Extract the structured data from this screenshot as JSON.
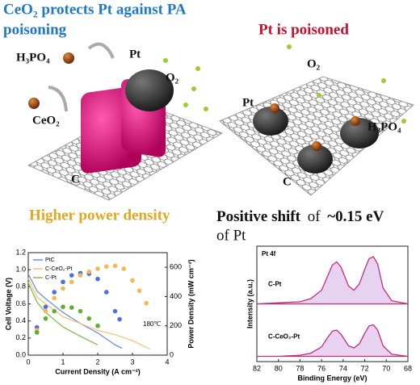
{
  "headings": {
    "left": [
      "CeO₂ protects Pt against PA",
      "poisoning"
    ],
    "right": "Pt is poisoned",
    "power": "Higher power density",
    "shift": [
      "Positive shift",
      "of",
      "~0.15 eV"
    ],
    "shift_line2": "of Pt"
  },
  "labels_left": [
    "H₃PO₄",
    "Pt",
    "O₂",
    "CeO₂",
    "C"
  ],
  "labels_right": [
    "O₂",
    "Pt",
    "H₃PO₄",
    "C"
  ],
  "chart_data": [
    {
      "type": "line",
      "xlabel": "Current Density (A cm⁻²)",
      "ylabel": "Cell Voltage (V)",
      "y2label": "Power Density (mW cm⁻²)",
      "annotation": "180℃",
      "xlim": [
        0,
        4
      ],
      "xticks": [
        0,
        1,
        2,
        3,
        4
      ],
      "ylim": [
        0,
        1.2
      ],
      "yticks": [
        {
          "value": 0,
          "label": "0.0"
        },
        {
          "value": 0.2,
          "label": "0.2"
        },
        {
          "value": 0.4,
          "label": "0.4"
        },
        {
          "value": 0.6,
          "label": "0.6"
        },
        {
          "value": 0.8,
          "label": "0.8"
        },
        {
          "value": 1,
          "label": "1.0"
        },
        {
          "value": 1.2,
          "label": "1.2"
        }
      ],
      "y2lim": [
        0,
        700
      ],
      "y2ticks": [
        0,
        200,
        400,
        600
      ],
      "series": [
        {
          "name": "PtC",
          "color": "#6f8fe8",
          "x": [
            0,
            0.25,
            0.5,
            1,
            1.5,
            2,
            2.5,
            2.7
          ],
          "values": [
            0.95,
            0.75,
            0.66,
            0.5,
            0.37,
            0.26,
            0.12,
            0.08
          ]
        },
        {
          "name": "C-CeO₂-Pt",
          "color": "#f5c47a",
          "x": [
            0,
            0.25,
            0.5,
            1,
            1.5,
            2,
            2.5,
            3,
            3.5
          ],
          "values": [
            0.9,
            0.68,
            0.6,
            0.45,
            0.37,
            0.29,
            0.24,
            0.17,
            0.07
          ]
        },
        {
          "name": "C-Pt",
          "color": "#7cc24a",
          "x": [
            0,
            0.25,
            0.5,
            1,
            1.5,
            2
          ],
          "values": [
            0.85,
            0.62,
            0.5,
            0.33,
            0.22,
            0.12
          ]
        },
        {
          "color": "#4f6fe0",
          "axis": "y2",
          "marker": true,
          "x": [
            0.25,
            0.5,
            0.75,
            1,
            1.25,
            1.5,
            1.75,
            2,
            2.25,
            2.5,
            2.63
          ],
          "values": [
            190,
            330,
            430,
            500,
            545,
            560,
            556,
            520,
            430,
            300,
            245
          ]
        },
        {
          "color": "#f5b855",
          "axis": "y2",
          "marker": true,
          "x": [
            0.25,
            0.5,
            0.75,
            1,
            1.25,
            1.5,
            1.75,
            2,
            2.25,
            2.5,
            2.75,
            3,
            3.2,
            3.4
          ],
          "values": [
            170,
            300,
            390,
            455,
            500,
            545,
            570,
            590,
            605,
            610,
            590,
            510,
            440,
            355
          ]
        },
        {
          "color": "#5cb030",
          "axis": "y2",
          "marker": true,
          "x": [
            0.25,
            0.5,
            0.75,
            1,
            1.25,
            1.5,
            1.75,
            2
          ],
          "values": [
            155,
            250,
            300,
            330,
            325,
            300,
            250,
            200
          ]
        }
      ]
    },
    {
      "type": "spectrum",
      "xlabel": "Binding Energy (eV)",
      "ylabel": "Intensity (a.u.)",
      "annotation": "Pt 4f",
      "xlim": [
        82,
        68
      ],
      "xticks": [
        82,
        80,
        78,
        76,
        74,
        72,
        70,
        68
      ],
      "ylim": [
        0,
        1.1
      ],
      "x": [
        82,
        80,
        78,
        77,
        76,
        75.5,
        75,
        74.6,
        74.2,
        73.5,
        73,
        72.5,
        72,
        71.6,
        71.2,
        70.8,
        70.3,
        69.5,
        68
      ],
      "series": [
        {
          "name": "C-Pt",
          "color": "#c0307a",
          "values": [
            0.55,
            0.56,
            0.57,
            0.6,
            0.68,
            0.8,
            0.92,
            0.95,
            0.9,
            0.72,
            0.68,
            0.74,
            0.88,
            0.98,
            1.0,
            0.93,
            0.7,
            0.58,
            0.55
          ]
        },
        {
          "name": "C-CeO₂-Pt",
          "color": "#c0307a",
          "values": [
            0.05,
            0.05,
            0.06,
            0.08,
            0.14,
            0.22,
            0.29,
            0.3,
            0.26,
            0.15,
            0.13,
            0.17,
            0.27,
            0.34,
            0.35,
            0.3,
            0.15,
            0.07,
            0.05
          ]
        }
      ]
    }
  ]
}
